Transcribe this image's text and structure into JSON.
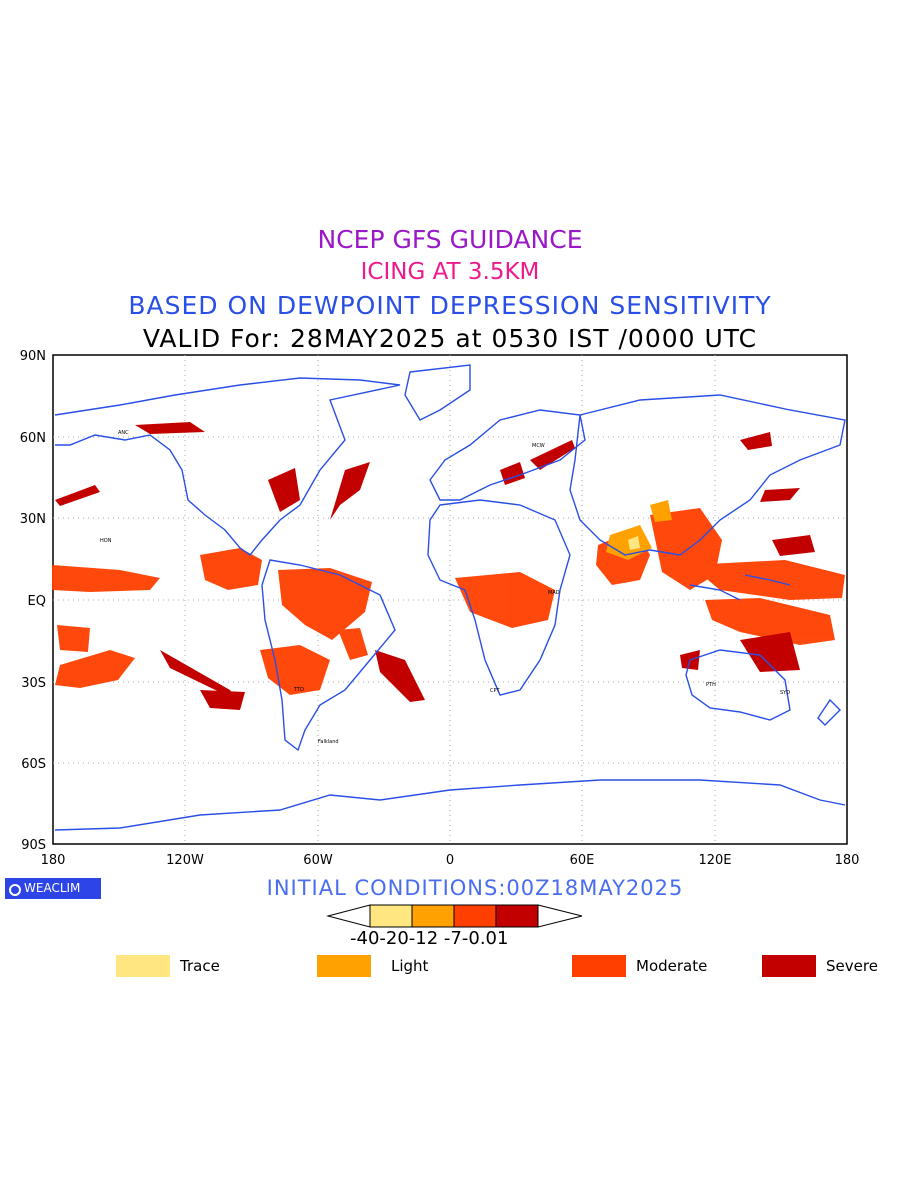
{
  "titles": {
    "line1": "NCEP GFS GUIDANCE",
    "line2": "ICING AT 3.5KM",
    "line3": "BASED ON DEWPOINT DEPRESSION SENSITIVITY",
    "line4": "VALID For: 28MAY2025 at 0530 IST /0000 UTC"
  },
  "axes": {
    "lat_labels": [
      "90N",
      "60N",
      "30N",
      "EQ",
      "30S",
      "60S",
      "90S"
    ],
    "lon_labels": [
      "180",
      "120W",
      "60W",
      "0",
      "60E",
      "120E",
      "180"
    ]
  },
  "logo": {
    "text": "WEACLIM"
  },
  "initial_conditions": "INITIAL CONDITIONS:00Z18MAY2025",
  "colorbar": {
    "ticks": "-40-20-12 -7-0.01",
    "colors": [
      "#ffe680",
      "#ffa100",
      "#ff3f00",
      "#c30000"
    ]
  },
  "legend": [
    {
      "label": "Trace",
      "color": "#ffe680"
    },
    {
      "label": "Light",
      "color": "#ffa100"
    },
    {
      "label": "Moderate",
      "color": "#ff3f00"
    },
    {
      "label": "Severe",
      "color": "#c30000"
    }
  ],
  "map_colors": {
    "coast": "#2a4fe6",
    "grid": "#b0b0b0"
  },
  "station_labels": [
    "ANC",
    "HON",
    "CPT",
    "TTO",
    "Falkland",
    "MCW",
    "SYD",
    "PTH",
    "MAD"
  ]
}
